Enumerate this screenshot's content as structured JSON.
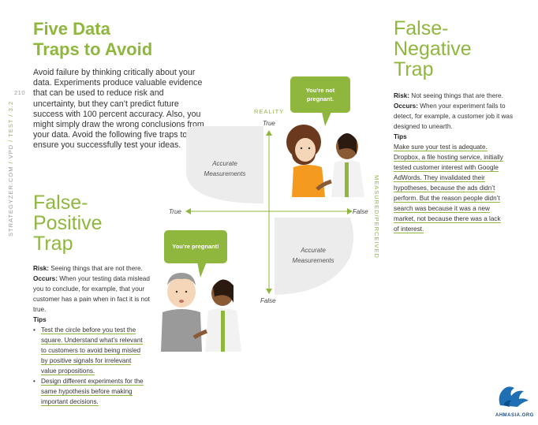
{
  "page_number": "210",
  "side_label": {
    "site": "STRATEGYZER.COM",
    "sep1": " / ",
    "book": "VPD",
    "sep2": " / ",
    "section": "TEST",
    "sep3": " / ",
    "chapter": "3.2"
  },
  "title_line1": "Five Data",
  "title_line2": "Traps to Avoid",
  "intro": "Avoid failure by thinking critically about your data. Experiments produce valuable evidence that can be used to reduce risk and uncertainty, but they can’t predict future success with 100 percent accuracy. Also, you might simply draw the wrong conclusions from your data. Avoid the following five traps to ensure you successfully test your ideas.",
  "false_positive": {
    "title_line1": "False-",
    "title_line2": "Positive",
    "title_line3": "Trap",
    "risk_label": "Risk:",
    "risk": " Seeing things that are not there.",
    "occurs_label": "Occurs:",
    "occurs": " When your testing data mislead you to conclude, for example, that your customer has a pain when in fact it is not true.",
    "tips_label": "Tips",
    "tips": [
      [
        "Test the circle before you test the",
        "square. Understand what’s relevant",
        "to customers to avoid being misled",
        "by positive signals for irrelevant",
        "value propositions."
      ],
      [
        "Design different experiments for the",
        "same hypothesis before making",
        "important decisions."
      ]
    ]
  },
  "false_negative": {
    "title_line1": "False-",
    "title_line2": "Negative",
    "title_line3": "Trap",
    "risk_label": "Risk:",
    "risk": " Not seeing things that are there.",
    "occurs_label": "Occurs:",
    "occurs": " When your experiment fails to detect, for example, a customer job it was designed to unearth.",
    "tips_label": "Tips",
    "tips_lines": [
      "Make sure your test is adequate.",
      "Dropbox, a file hosting service, initially",
      "tested customer interest with Google",
      "AdWords. They invalidated their",
      "hypotheses, because the ads didn’t",
      "perform. But the reason people didn’t",
      "search was because it was a new",
      "market, not because there was a lack",
      "of interest."
    ]
  },
  "diagram": {
    "axis_reality": "REALITY",
    "axis_measured": "MEASURED/PERCEIVED",
    "true_top": "True",
    "false_bottom": "False",
    "true_left": "True",
    "false_right": "False",
    "accurate1_line1": "Accurate",
    "accurate1_line2": "Measurements",
    "accurate2_line1": "Accurate",
    "accurate2_line2": "Measurements",
    "bubble_not_pregnant_line1": "You’re not",
    "bubble_not_pregnant_line2": "pregnant.",
    "bubble_pregnant": "You’re pregnant!"
  },
  "logo_text": "AHMASIA.ORG",
  "colors": {
    "accent": "#8fb73e",
    "quadrant": "#ececec"
  }
}
